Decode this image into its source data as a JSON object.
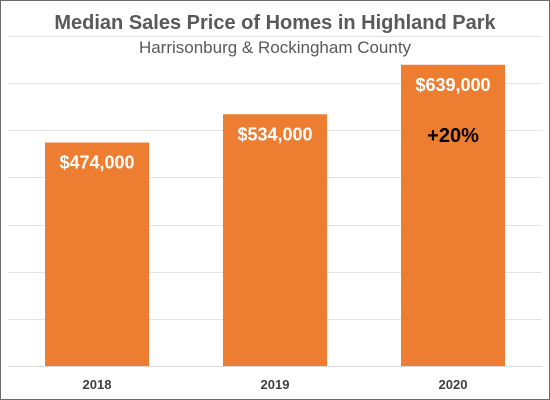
{
  "chart_data": {
    "type": "bar",
    "title": "Median Sales Price of Homes in Highland Park",
    "subtitle": "Harrisonburg & Rockingham County",
    "categories": [
      "2018",
      "2019",
      "2020"
    ],
    "values": [
      474000,
      534000,
      639000
    ],
    "data_labels": [
      "$474,000",
      "$534,000",
      "$639,000"
    ],
    "annotations": [
      {
        "category": "2020",
        "text": "+20%"
      }
    ],
    "xlabel": "",
    "ylabel": "",
    "ylim": [
      0,
      700000
    ],
    "grid": true,
    "legend": "none",
    "bar_color": "#ED7D31"
  }
}
